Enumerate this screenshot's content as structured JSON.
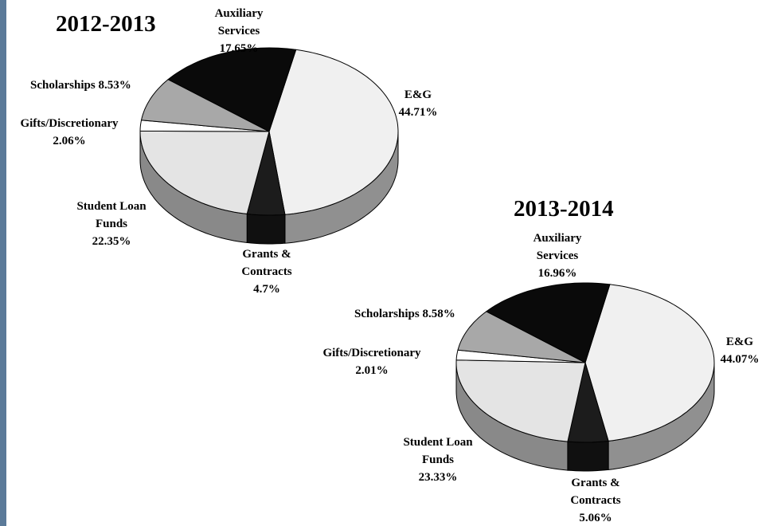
{
  "chart_data": [
    {
      "type": "pie",
      "title": "2012-2013",
      "categories": [
        "E&G",
        "Grants & Contracts",
        "Student Loan Funds",
        "Gifts/Discretionary",
        "Scholarships",
        "Auxiliary Services"
      ],
      "values": [
        44.71,
        4.7,
        22.35,
        2.06,
        8.53,
        17.65
      ],
      "value_labels": [
        "44.71%",
        "4.7%",
        "22.35%",
        "2.06%",
        "8.53%",
        "17.65%"
      ],
      "colors": [
        "#f0f0f0",
        "#1c1c1c",
        "#e4e4e4",
        "#ffffff",
        "#a8a8a8",
        "#0a0a0a"
      ]
    },
    {
      "type": "pie",
      "title": "2013-2014",
      "categories": [
        "E&G",
        "Grants & Contracts",
        "Student Loan Funds",
        "Gifts/Discretionary",
        "Scholarships",
        "Auxiliary Services"
      ],
      "values": [
        44.07,
        5.06,
        23.33,
        2.01,
        8.58,
        16.96
      ],
      "value_labels": [
        "44.07%",
        "5.06%",
        "23.33%",
        "2.01%",
        "8.58%",
        "16.96%"
      ],
      "colors": [
        "#f0f0f0",
        "#1c1c1c",
        "#e4e4e4",
        "#ffffff",
        "#a8a8a8",
        "#0a0a0a"
      ]
    }
  ]
}
